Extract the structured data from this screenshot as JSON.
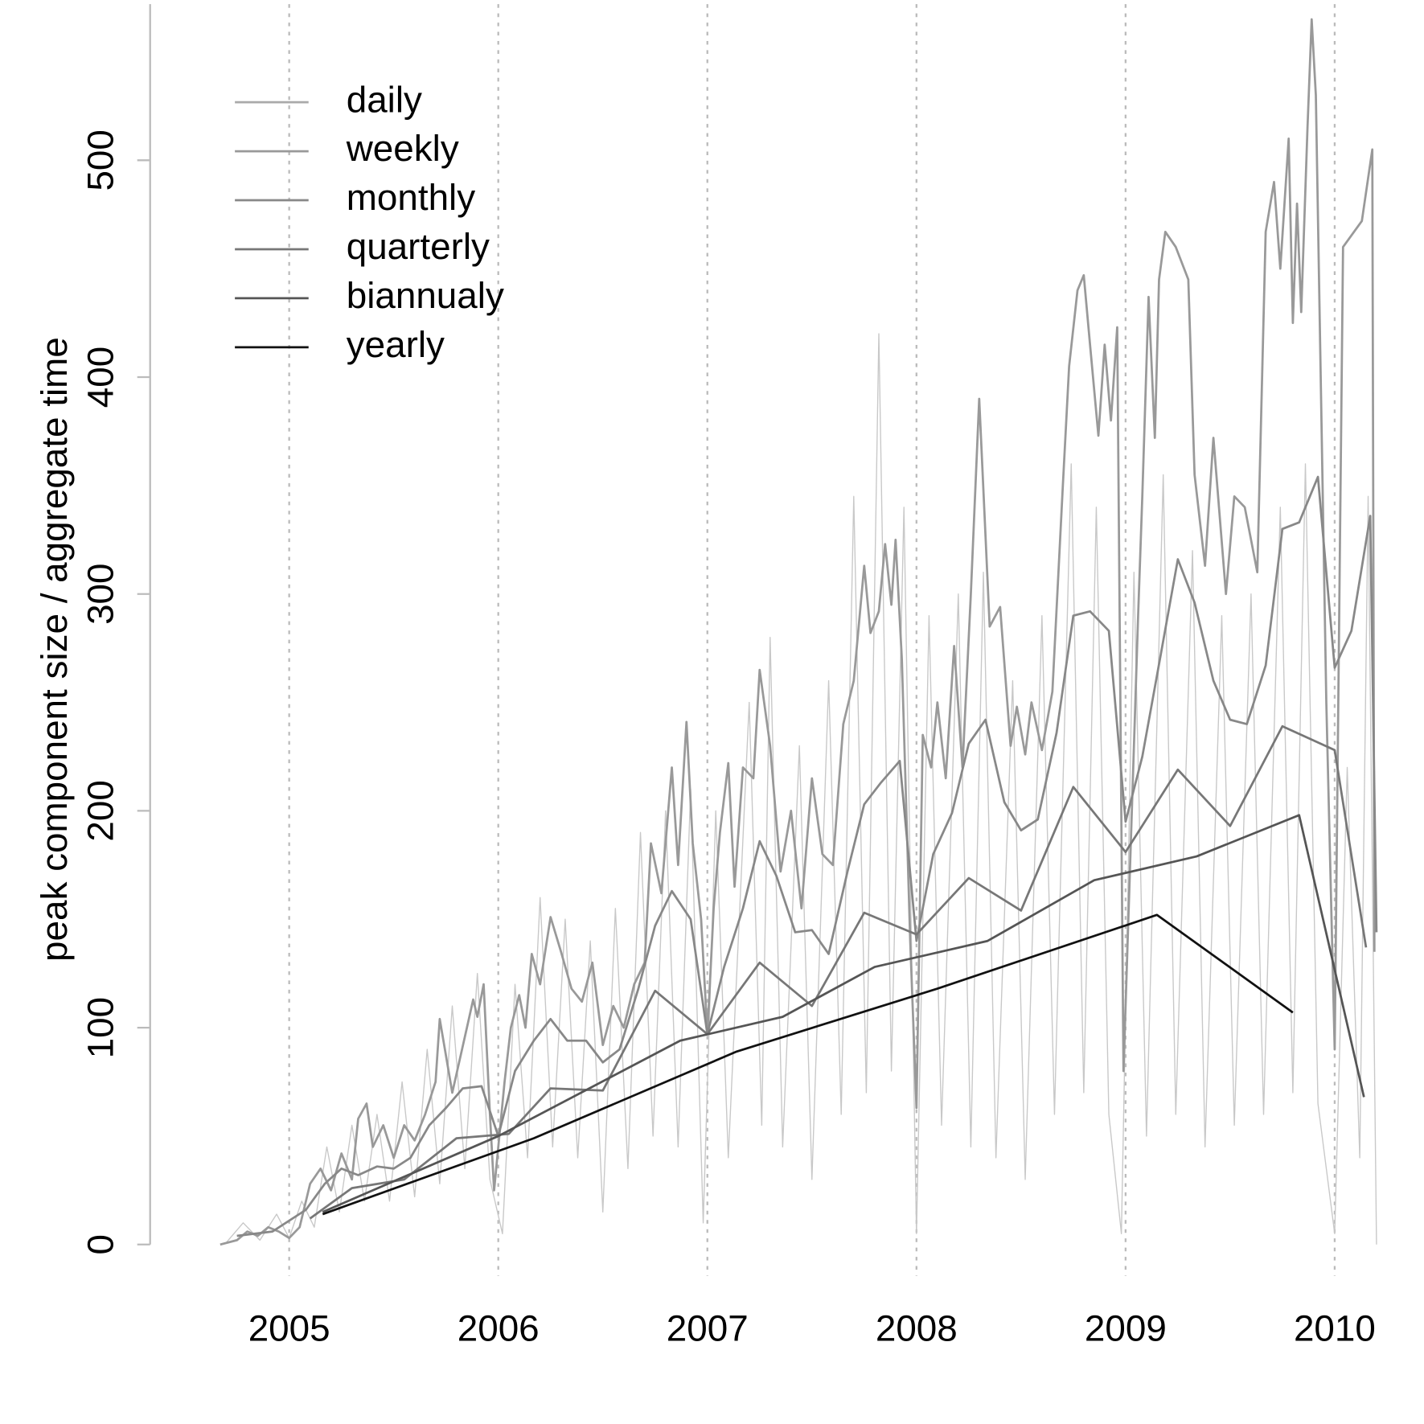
{
  "chart_data": {
    "type": "line",
    "y_label": "peak component size / aggregate time",
    "xlim": [
      2004.335,
      2010.273
    ],
    "ylim": [
      -25,
      572
    ],
    "xticks": [
      2005,
      2006,
      2007,
      2008,
      2009,
      2010
    ],
    "yticks": [
      0,
      100,
      200,
      300,
      400,
      500
    ],
    "grid": "x",
    "legend": "top-left",
    "series": [
      {
        "name": "daily",
        "color": "#c8c8c8",
        "x": [
          2004.7,
          2004.78,
          2004.86,
          2004.94,
          2005.0,
          2005.06,
          2005.12,
          2005.18,
          2005.24,
          2005.3,
          2005.36,
          2005.42,
          2005.48,
          2005.54,
          2005.6,
          2005.66,
          2005.72,
          2005.78,
          2005.84,
          2005.9,
          2005.96,
          2006.02,
          2006.08,
          2006.14,
          2006.2,
          2006.26,
          2006.32,
          2006.38,
          2006.44,
          2006.5,
          2006.56,
          2006.62,
          2006.68,
          2006.74,
          2006.8,
          2006.86,
          2006.92,
          2006.98,
          2007.04,
          2007.1,
          2007.2,
          2007.26,
          2007.3,
          2007.36,
          2007.44,
          2007.5,
          2007.58,
          2007.64,
          2007.7,
          2007.76,
          2007.82,
          2007.88,
          2007.94,
          2008.0,
          2008.06,
          2008.12,
          2008.2,
          2008.26,
          2008.32,
          2008.38,
          2008.46,
          2008.52,
          2008.6,
          2008.66,
          2008.74,
          2008.8,
          2008.86,
          2008.92,
          2008.98,
          2009.04,
          2009.1,
          2009.18,
          2009.24,
          2009.32,
          2009.38,
          2009.46,
          2009.52,
          2009.6,
          2009.66,
          2009.74,
          2009.8,
          2009.86,
          2009.92,
          2010.0,
          2010.06,
          2010.12,
          2010.16,
          2010.2
        ],
        "values": [
          1,
          10,
          2,
          14,
          3,
          20,
          8,
          45,
          15,
          55,
          20,
          60,
          20,
          75,
          22,
          90,
          28,
          110,
          35,
          125,
          30,
          5,
          120,
          40,
          160,
          45,
          150,
          40,
          140,
          15,
          155,
          35,
          190,
          50,
          200,
          45,
          210,
          10,
          200,
          40,
          250,
          55,
          280,
          45,
          230,
          30,
          260,
          60,
          345,
          70,
          420,
          80,
          340,
          5,
          290,
          55,
          300,
          45,
          310,
          40,
          260,
          30,
          290,
          60,
          360,
          70,
          340,
          60,
          5,
          310,
          50,
          355,
          60,
          320,
          45,
          290,
          55,
          300,
          60,
          340,
          70,
          360,
          65,
          5,
          220,
          40,
          345,
          0
        ]
      },
      {
        "name": "weekly",
        "color": "#999999",
        "x": [
          2004.67,
          2004.75,
          2004.8,
          2004.85,
          2004.9,
          2004.95,
          2005.0,
          2005.05,
          2005.1,
          2005.15,
          2005.2,
          2005.25,
          2005.3,
          2005.33,
          2005.37,
          2005.4,
          2005.45,
          2005.5,
          2005.55,
          2005.6,
          2005.65,
          2005.7,
          2005.72,
          2005.78,
          2005.85,
          2005.88,
          2005.9,
          2005.93,
          2005.96,
          2005.98,
          2006.03,
          2006.06,
          2006.1,
          2006.13,
          2006.16,
          2006.2,
          2006.25,
          2006.3,
          2006.35,
          2006.4,
          2006.45,
          2006.5,
          2006.55,
          2006.6,
          2006.65,
          2006.7,
          2006.73,
          2006.78,
          2006.83,
          2006.86,
          2006.9,
          2006.93,
          2006.97,
          2007.0,
          2007.03,
          2007.06,
          2007.1,
          2007.13,
          2007.17,
          2007.22,
          2007.25,
          2007.3,
          2007.35,
          2007.4,
          2007.45,
          2007.5,
          2007.55,
          2007.6,
          2007.65,
          2007.7,
          2007.75,
          2007.78,
          2007.82,
          2007.85,
          2007.88,
          2007.9,
          2007.93,
          2007.97,
          2008.0,
          2008.03,
          2008.07,
          2008.1,
          2008.14,
          2008.18,
          2008.22,
          2008.26,
          2008.3,
          2008.35,
          2008.4,
          2008.45,
          2008.48,
          2008.52,
          2008.55,
          2008.6,
          2008.65,
          2008.7,
          2008.73,
          2008.77,
          2008.8,
          2008.83,
          2008.87,
          2008.9,
          2008.93,
          2008.96,
          2008.99,
          2009.06,
          2009.08,
          2009.11,
          2009.14,
          2009.16,
          2009.19,
          2009.24,
          2009.3,
          2009.33,
          2009.38,
          2009.42,
          2009.48,
          2009.52,
          2009.57,
          2009.63,
          2009.67,
          2009.71,
          2009.74,
          2009.78,
          2009.8,
          2009.82,
          2009.84,
          2009.87,
          2009.89,
          2009.91,
          2009.96,
          2010.0,
          2010.04,
          2010.13,
          2010.18,
          2010.19
        ],
        "values": [
          0,
          2,
          6,
          4,
          8,
          6,
          3,
          8,
          28,
          35,
          25,
          42,
          30,
          58,
          65,
          45,
          55,
          40,
          55,
          48,
          60,
          75,
          104,
          70,
          100,
          113,
          105,
          120,
          60,
          25,
          75,
          100,
          115,
          100,
          134,
          120,
          151,
          135,
          118,
          112,
          130,
          92,
          110,
          100,
          120,
          130,
          185,
          162,
          220,
          175,
          241,
          185,
          150,
          97,
          155,
          190,
          222,
          165,
          220,
          215,
          265,
          230,
          172,
          200,
          155,
          215,
          180,
          175,
          240,
          260,
          313,
          282,
          292,
          323,
          295,
          325,
          270,
          140,
          63,
          235,
          220,
          250,
          215,
          276,
          220,
          300,
          390,
          285,
          294,
          230,
          248,
          226,
          250,
          228,
          255,
          350,
          405,
          440,
          447,
          415,
          373,
          415,
          380,
          423,
          80,
          290,
          345,
          437,
          372,
          445,
          467,
          460,
          445,
          355,
          313,
          372,
          300,
          345,
          340,
          310,
          467,
          490,
          450,
          510,
          425,
          480,
          430,
          515,
          565,
          530,
          250,
          90,
          460,
          472,
          505,
          135
        ]
      },
      {
        "name": "monthly",
        "color": "#888888",
        "x": [
          2004.75,
          2004.92,
          2005.08,
          2005.17,
          2005.25,
          2005.33,
          2005.42,
          2005.5,
          2005.58,
          2005.67,
          2005.75,
          2005.83,
          2005.92,
          2006.0,
          2006.08,
          2006.17,
          2006.25,
          2006.33,
          2006.42,
          2006.5,
          2006.58,
          2006.67,
          2006.75,
          2006.83,
          2006.92,
          2007.0,
          2007.08,
          2007.17,
          2007.25,
          2007.33,
          2007.42,
          2007.5,
          2007.58,
          2007.67,
          2007.75,
          2007.83,
          2007.92,
          2008.0,
          2008.08,
          2008.17,
          2008.25,
          2008.33,
          2008.42,
          2008.5,
          2008.58,
          2008.67,
          2008.75,
          2008.83,
          2008.92,
          2009.0,
          2009.08,
          2009.17,
          2009.25,
          2009.33,
          2009.42,
          2009.5,
          2009.58,
          2009.67,
          2009.75,
          2009.83,
          2009.92,
          2010.0,
          2010.08,
          2010.17,
          2010.2
        ],
        "values": [
          4,
          6,
          16,
          28,
          35,
          32,
          36,
          35,
          40,
          55,
          63,
          72,
          73,
          50,
          80,
          94,
          104,
          94,
          94,
          84,
          90,
          118,
          147,
          163,
          150,
          97,
          128,
          155,
          186,
          170,
          144,
          145,
          134,
          172,
          203,
          213,
          223,
          140,
          180,
          199,
          231,
          242,
          204,
          191,
          196,
          236,
          290,
          292,
          283,
          195,
          225,
          273,
          316,
          296,
          260,
          242,
          240,
          267,
          330,
          333,
          354,
          266,
          283,
          336,
          144
        ]
      },
      {
        "name": "quarterly",
        "color": "#777777",
        "x": [
          2005.1,
          2005.3,
          2005.55,
          2005.8,
          2006.05,
          2006.25,
          2006.5,
          2006.75,
          2007.0,
          2007.25,
          2007.5,
          2007.75,
          2008.0,
          2008.25,
          2008.5,
          2008.75,
          2009.0,
          2009.25,
          2009.5,
          2009.75,
          2010.0,
          2010.15
        ],
        "values": [
          12,
          26,
          30,
          49,
          51,
          72,
          71,
          117,
          97,
          130,
          110,
          153,
          143,
          169,
          154,
          211,
          181,
          219,
          193,
          239,
          228,
          137
        ]
      },
      {
        "name": "biannualy",
        "color": "#555555",
        "x": [
          2005.16,
          2006.0,
          2006.87,
          2007.36,
          2007.8,
          2008.34,
          2008.85,
          2009.34,
          2009.83,
          2010.14
        ],
        "values": [
          15,
          50,
          94,
          105,
          128,
          140,
          168,
          179,
          198,
          68
        ]
      },
      {
        "name": "yearly",
        "color": "#111111",
        "x": [
          2005.16,
          2006.17,
          2007.14,
          2008.1,
          2009.15,
          2009.8
        ],
        "values": [
          14,
          49,
          89,
          118,
          152,
          107
        ]
      }
    ]
  }
}
